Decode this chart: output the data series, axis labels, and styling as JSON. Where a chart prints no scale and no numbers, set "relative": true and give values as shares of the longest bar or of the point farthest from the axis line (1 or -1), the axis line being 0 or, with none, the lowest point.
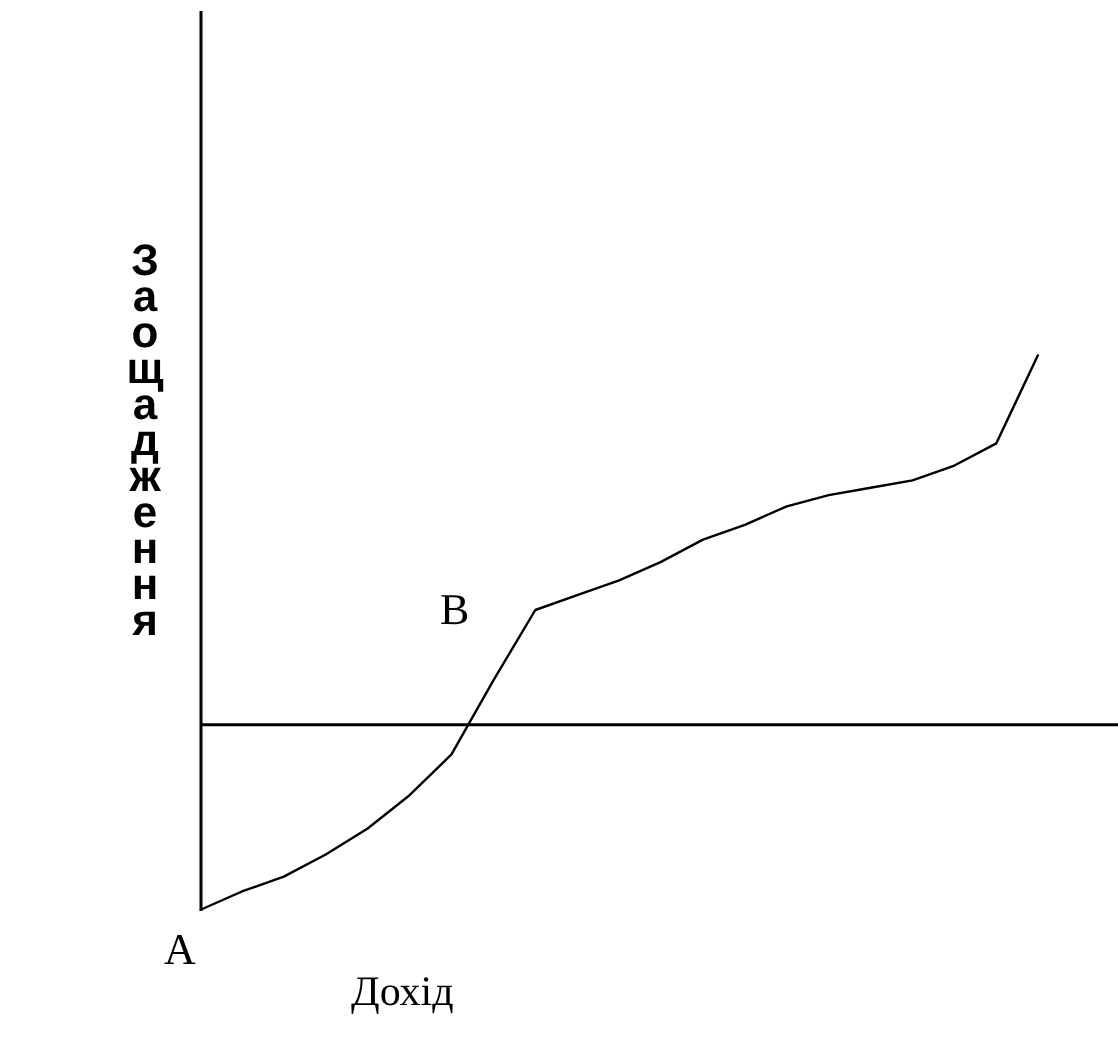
{
  "chart_data": {
    "type": "line",
    "relative": true,
    "ylabel": "Заощадження",
    "xlabel": "Дохід",
    "annotations": [
      "A",
      "B"
    ],
    "categories": [
      null,
      null,
      null,
      null,
      null,
      null,
      null,
      null,
      null,
      null,
      null,
      null,
      null,
      null,
      null,
      null,
      null,
      null,
      null,
      null,
      null,
      null,
      null,
      null
    ],
    "series": [
      {
        "color": "#000000",
        "values": [
          -0.5,
          -0.45,
          -0.41,
          -0.35,
          -0.28,
          -0.19,
          -0.08,
          0.12,
          0.31,
          0.35,
          0.39,
          0.44,
          0.5,
          0.54,
          0.59,
          0.62,
          0.64,
          0.66,
          0.7,
          0.76,
          1,
          null,
          null,
          null
        ]
      }
    ],
    "grid": false,
    "marker": "none",
    "line_style": "solid"
  }
}
